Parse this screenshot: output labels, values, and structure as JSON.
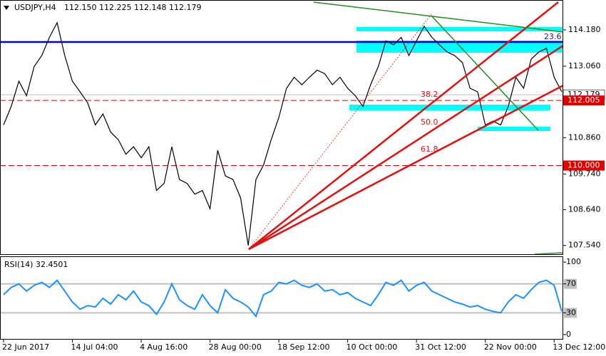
{
  "chart_data": [
    {
      "type": "line",
      "title": "USDJPY,H4",
      "ohlc": "112.150 112.225 112.148 112.179",
      "categories": [
        "22 Jun 2017",
        null,
        null,
        null,
        null,
        null,
        null,
        null,
        null,
        "14 Jul 04:00",
        null,
        null,
        null,
        null,
        null,
        null,
        null,
        null,
        "4 Aug 16:00",
        null,
        null,
        null,
        null,
        null,
        null,
        null,
        null,
        "28 Aug 00:00",
        null,
        null,
        null,
        null,
        null,
        null,
        null,
        null,
        "18 Sep 12:00",
        null,
        null,
        null,
        null,
        null,
        null,
        null,
        null,
        "10 Oct 00:00",
        null,
        null,
        null,
        null,
        null,
        null,
        null,
        null,
        "31 Oct 12:00",
        null,
        null,
        null,
        null,
        null,
        null,
        null,
        null,
        "22 Nov 00:00",
        null,
        null,
        null,
        null,
        null,
        null,
        null,
        null,
        "13 Dec 12:00",
        null
      ],
      "series": [
        {
          "name": "USDJPY",
          "color": "#000000",
          "values": [
            111.25,
            111.82,
            112.6,
            112.15,
            113.05,
            113.39,
            113.95,
            114.4,
            113.39,
            112.6,
            112.27,
            111.93,
            111.25,
            111.59,
            111.03,
            110.8,
            110.35,
            110.58,
            110.24,
            110.58,
            109.23,
            109.45,
            110.58,
            109.57,
            109.45,
            109.12,
            109.23,
            108.67,
            110.47,
            109.68,
            109.57,
            109.0,
            107.54,
            109.57,
            110.02,
            110.8,
            111.48,
            112.38,
            112.72,
            112.49,
            112.72,
            112.94,
            112.83,
            112.49,
            112.72,
            112.38,
            112.15,
            111.82,
            112.49,
            113.05,
            113.84,
            113.72,
            113.95,
            113.39,
            113.84,
            114.29,
            113.95,
            113.72,
            113.5,
            113.39,
            113.17,
            112.38,
            112.27,
            111.25,
            111.37,
            111.25,
            111.82,
            112.72,
            112.38,
            113.28,
            113.5,
            113.61,
            112.72,
            112.27
          ]
        }
      ],
      "ylim": [
        107.27,
        115.1
      ],
      "yticks": [
        {
          "value": 114.18,
          "label": "114.180"
        },
        {
          "value": 113.06,
          "label": "113.060"
        },
        {
          "value": 110.86,
          "label": "110.860"
        },
        {
          "value": 109.74,
          "label": "109.740"
        },
        {
          "value": 108.64,
          "label": "108.640"
        },
        {
          "value": 107.54,
          "label": "107.540"
        }
      ],
      "price_lines": [
        {
          "value": 112.179,
          "label": "112.179",
          "color": "#c0c0c0"
        },
        {
          "value": 112.005,
          "label": "112.005",
          "color": "#e00000"
        },
        {
          "value": 110.0,
          "label": "110.000",
          "color": "#e00000"
        }
      ],
      "annotations": [
        "23.6",
        "38.2",
        "50.0",
        "61.8"
      ]
    },
    {
      "type": "line",
      "title": "RSI(14) 32.4501",
      "series": [
        {
          "name": "RSI(14)",
          "color": "#1e90ff",
          "values": [
            55,
            65,
            70,
            60,
            68,
            72,
            65,
            75,
            60,
            45,
            35,
            40,
            38,
            50,
            42,
            55,
            48,
            60,
            45,
            40,
            28,
            45,
            70,
            48,
            40,
            35,
            55,
            40,
            30,
            62,
            50,
            45,
            38,
            25,
            55,
            60,
            72,
            70,
            75,
            68,
            65,
            70,
            60,
            62,
            55,
            58,
            50,
            45,
            40,
            55,
            72,
            68,
            75,
            60,
            68,
            72,
            60,
            55,
            50,
            45,
            42,
            38,
            40,
            35,
            32,
            30,
            45,
            55,
            50,
            62,
            72,
            75,
            68,
            32
          ]
        }
      ],
      "ylim": [
        -7,
        108
      ],
      "yticks": [
        100,
        70,
        30,
        0
      ],
      "levels": [
        70,
        30
      ]
    }
  ]
}
